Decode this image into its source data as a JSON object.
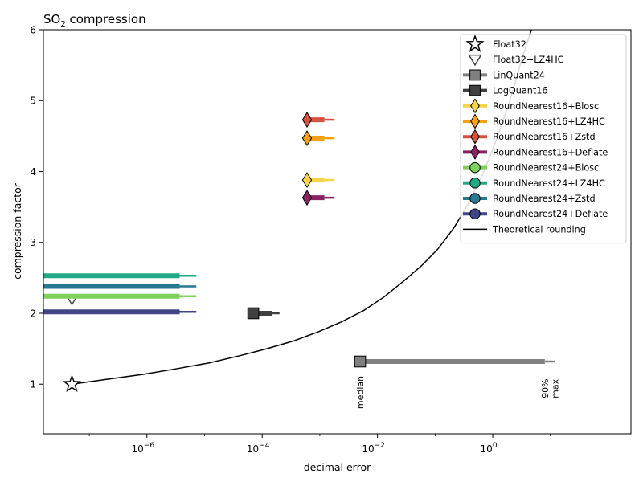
{
  "chart_data": {
    "type": "scatter",
    "title": "SO",
    "title_sub": "2",
    "title_rest": " compression",
    "xlabel": "decimal error",
    "ylabel": "compression factor",
    "x_scale": "log",
    "xlim": [
      1.6e-08,
      250
    ],
    "ylim": [
      0.3,
      6.0
    ],
    "x_ticks": [
      {
        "value": 1e-06,
        "base": "10",
        "exp": "−6"
      },
      {
        "value": 0.0001,
        "base": "10",
        "exp": "−4"
      },
      {
        "value": 0.01,
        "base": "10",
        "exp": "−2"
      },
      {
        "value": 1,
        "base": "10",
        "exp": "0"
      }
    ],
    "y_ticks": [
      1,
      2,
      3,
      4,
      5,
      6
    ],
    "grid": false,
    "legend_position": "top-right",
    "series": [
      {
        "name": "Float32",
        "marker": "star",
        "color": "#ffffff",
        "edge": "#000000",
        "median": 5e-08,
        "p90": null,
        "max": null,
        "y": 1.0
      },
      {
        "name": "Float32+LZ4HC",
        "marker": "triangle-down",
        "color": "#ffffff",
        "edge": "#444444",
        "median": 5e-08,
        "p90": null,
        "max": null,
        "y": 2.2
      },
      {
        "name": "LinQuant24",
        "marker": "square",
        "color": "#808080",
        "edge": "#000000",
        "median": 0.005,
        "p90": 8.0,
        "max": 12.0,
        "y": 1.32
      },
      {
        "name": "LogQuant16",
        "marker": "square",
        "color": "#404040",
        "edge": "#000000",
        "median": 7e-05,
        "p90": 0.00015,
        "max": 0.0002,
        "y": 2.0
      },
      {
        "name": "RoundNearest16+Blosc",
        "marker": "diamond",
        "color": "#f5d547",
        "edge": "#000000",
        "median": 0.0006,
        "p90": 0.0012,
        "max": 0.0018,
        "y": 3.88
      },
      {
        "name": "RoundNearest16+LZ4HC",
        "marker": "diamond",
        "color": "#f4a010",
        "edge": "#000000",
        "median": 0.0006,
        "p90": 0.0012,
        "max": 0.0018,
        "y": 4.47
      },
      {
        "name": "RoundNearest16+Zstd",
        "marker": "diamond",
        "color": "#d9503d",
        "edge": "#000000",
        "median": 0.0006,
        "p90": 0.0012,
        "max": 0.0018,
        "y": 4.73
      },
      {
        "name": "RoundNearest16+Deflate",
        "marker": "diamond",
        "color": "#8b2362",
        "edge": "#000000",
        "median": 0.0006,
        "p90": 0.0012,
        "max": 0.0018,
        "y": 3.63
      },
      {
        "name": "RoundNearest24+Blosc",
        "marker": "circle",
        "color": "#7ed15a",
        "edge": "#000000",
        "median": 1e-09,
        "p90": 3.7e-06,
        "max": 7.2e-06,
        "y": 2.24
      },
      {
        "name": "RoundNearest24+LZ4HC",
        "marker": "circle",
        "color": "#22a884",
        "edge": "#000000",
        "median": 1e-09,
        "p90": 3.7e-06,
        "max": 7.2e-06,
        "y": 2.53
      },
      {
        "name": "RoundNearest24+Zstd",
        "marker": "circle",
        "color": "#2a788e",
        "edge": "#000000",
        "median": 1e-09,
        "p90": 3.7e-06,
        "max": 7.2e-06,
        "y": 2.38
      },
      {
        "name": "RoundNearest24+Deflate",
        "marker": "circle",
        "color": "#414487",
        "edge": "#000000",
        "median": 1e-09,
        "p90": 3.7e-06,
        "max": 7.2e-06,
        "y": 2.02
      }
    ],
    "theoretical_rounding": {
      "name": "Theoretical rounding",
      "color": "#000000",
      "x": [
        5e-08,
        2.1e-07,
        8.8e-07,
        3.4e-06,
        1.2e-05,
        4e-05,
        0.00012,
        0.00035,
        0.00095,
        0.0024,
        0.0058,
        0.013,
        0.028,
        0.058,
        0.11,
        0.21,
        0.38,
        0.66,
        1.1,
        1.9,
        3.1,
        4.9
      ],
      "y": [
        1.0,
        1.07,
        1.14,
        1.22,
        1.3,
        1.4,
        1.5,
        1.61,
        1.74,
        1.88,
        2.04,
        2.23,
        2.45,
        2.67,
        2.9,
        3.2,
        3.55,
        3.95,
        4.4,
        4.95,
        5.55,
        6.05
      ]
    },
    "annotations": [
      {
        "text": "median",
        "x": 0.005,
        "y": 0.65
      },
      {
        "text": "90%",
        "x": 8.0,
        "y": 0.8
      },
      {
        "text": "max",
        "x": 12.0,
        "y": 0.8
      }
    ]
  }
}
